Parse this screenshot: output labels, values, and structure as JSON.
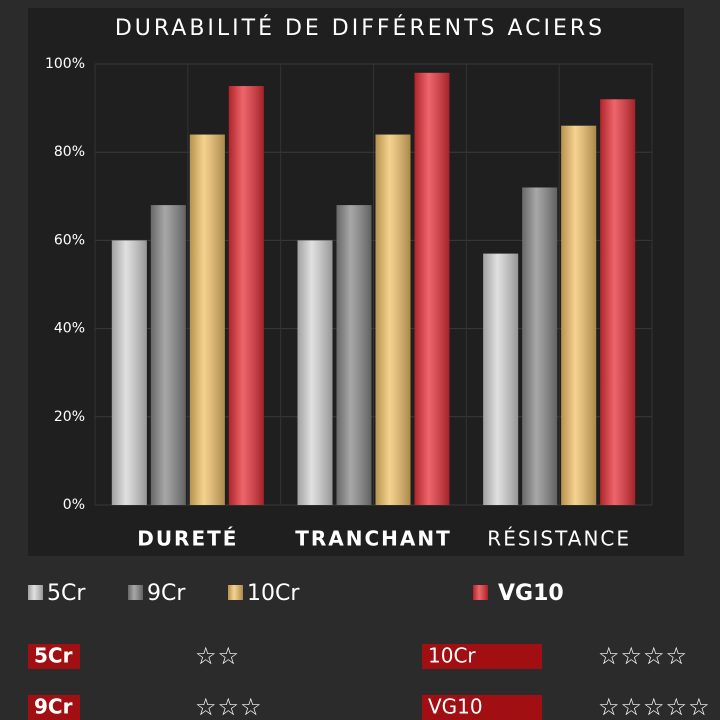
{
  "chart_data": {
    "type": "bar",
    "title": "DURABILITÉ DE DIFFÉRENTS ACIERS",
    "categories": [
      "DURETÉ",
      "TRANCHANT",
      "RÉSISTANCE"
    ],
    "series": [
      {
        "name": "5Cr",
        "color": "#d6d6d6",
        "values": [
          60,
          60,
          57
        ]
      },
      {
        "name": "9Cr",
        "color": "#8a8a8a",
        "values": [
          68,
          68,
          72
        ]
      },
      {
        "name": "10Cr",
        "color": "#f3c36a",
        "values": [
          84,
          84,
          86
        ]
      },
      {
        "name": "VG10",
        "color": "#e8313a",
        "values": [
          95,
          98,
          92
        ]
      }
    ],
    "ylim": [
      0,
      100
    ],
    "yticks": [
      {
        "value": 0,
        "label": "0%"
      },
      {
        "value": 20,
        "label": "20%"
      },
      {
        "value": 40,
        "label": "40%"
      },
      {
        "value": 60,
        "label": "60%"
      },
      {
        "value": 80,
        "label": "80%"
      },
      {
        "value": 100,
        "label": "100%"
      }
    ],
    "grid": true
  },
  "ratings": [
    {
      "label": "5Cr",
      "stars": "☆☆"
    },
    {
      "label": "9Cr",
      "stars": "☆☆☆"
    },
    {
      "label": "10Cr",
      "stars": "☆☆☆☆"
    },
    {
      "label": "VG10",
      "stars": "☆☆☆☆☆"
    }
  ]
}
